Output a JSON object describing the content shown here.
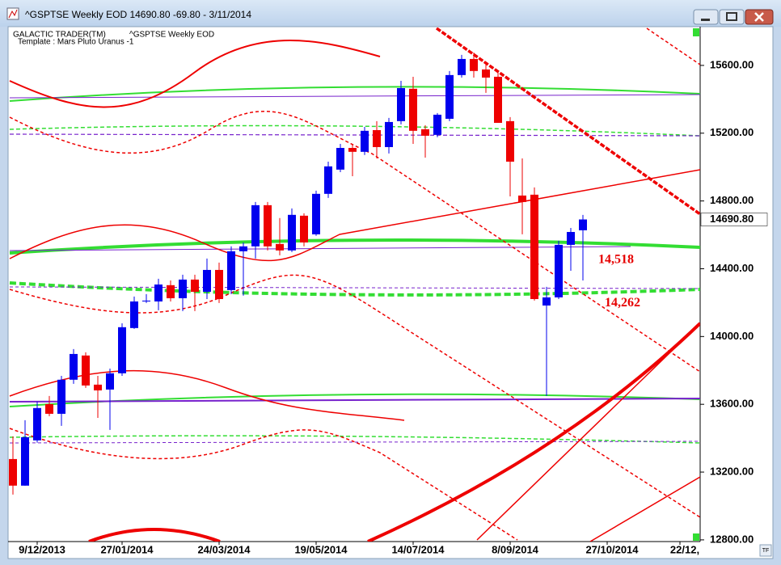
{
  "window": {
    "title": "^GSPTSE Weekly EOD  14690.80   -69.80 - 3/11/2014"
  },
  "chart_data": {
    "type": "candlestick",
    "header": "GALACTIC TRADER(TM)",
    "subheader": "^GSPTSE Weekly EOD",
    "template": "Template : Mars Pluto Uranus -1",
    "categories": [
      null,
      null,
      "9/12/2013",
      null,
      null,
      null,
      null,
      null,
      null,
      "27/01/2014",
      null,
      null,
      null,
      null,
      null,
      null,
      null,
      "24/03/2014",
      null,
      null,
      null,
      null,
      null,
      null,
      null,
      "19/05/2014",
      null,
      null,
      null,
      null,
      null,
      null,
      null,
      "14/07/2014",
      null,
      null,
      null,
      null,
      null,
      null,
      null,
      "8/09/2014",
      null,
      null,
      null,
      null,
      null,
      null,
      null,
      "27/10/2014",
      null,
      null,
      null,
      null,
      null,
      "22/12,",
      null
    ],
    "open": [
      13277,
      13120,
      13387,
      13601,
      13544,
      13745,
      13888,
      13716,
      13687,
      13783,
      14050,
      14207,
      14207,
      14303,
      14226,
      14336,
      14264,
      14393,
      14274,
      14503,
      14532,
      14775,
      14546,
      14508,
      14713,
      14603,
      14842,
      14985,
      15113,
      15090,
      15218,
      15118,
      15271,
      15462,
      15223,
      15190,
      15285,
      15543,
      15638,
      15576,
      15533,
      15271,
      14832,
      14837,
      14183,
      14231,
      14541,
      14627,
      null,
      null,
      null,
      null,
      null,
      null,
      null,
      null,
      null
    ],
    "high": [
      13411,
      13506,
      13616,
      13649,
      13768,
      13926,
      13907,
      13768,
      13811,
      14078,
      14236,
      14250,
      14341,
      14331,
      14365,
      14365,
      14460,
      14436,
      14532,
      14555,
      14794,
      14794,
      14699,
      14756,
      14727,
      14861,
      15032,
      15137,
      15137,
      15237,
      15271,
      15290,
      15509,
      15533,
      15247,
      15319,
      15567,
      15662,
      15676,
      15605,
      15557,
      15295,
      15051,
      14880,
      14293,
      14565,
      14641,
      14718,
      null,
      null,
      null,
      null,
      null,
      null,
      null,
      null,
      null
    ],
    "low": [
      13067,
      13120,
      13373,
      13530,
      13473,
      13721,
      13697,
      13520,
      13449,
      13768,
      14045,
      14198,
      14155,
      14207,
      14150,
      14150,
      14221,
      14198,
      14250,
      14241,
      14460,
      14508,
      14479,
      14498,
      14532,
      14594,
      14818,
      14970,
      14946,
      15071,
      15051,
      15080,
      15252,
      15137,
      15056,
      15176,
      15271,
      15528,
      15528,
      15438,
      15261,
      14827,
      14603,
      14212,
      13649,
      14221,
      14388,
      14331,
      null,
      null,
      null,
      null,
      null,
      null,
      null,
      null,
      null
    ],
    "close": [
      13120,
      13406,
      13578,
      13544,
      13745,
      13897,
      13711,
      13682,
      13783,
      14055,
      14207,
      14212,
      14307,
      14226,
      14336,
      14264,
      14393,
      14221,
      14503,
      14532,
      14775,
      14532,
      14508,
      14718,
      14555,
      14842,
      15004,
      15113,
      15090,
      15214,
      15118,
      15266,
      15466,
      15214,
      15185,
      15309,
      15543,
      15638,
      15567,
      15528,
      15261,
      15032,
      14794,
      14221,
      14231,
      14541,
      14617,
      14690.8,
      null,
      null,
      null,
      null,
      null,
      null,
      null,
      null,
      null
    ],
    "up_color": "#0000ee",
    "down_color": "#ee0000",
    "ylim": [
      12790,
      15819
    ],
    "yticks": [
      {
        "value": 12800,
        "label": "12800.00"
      },
      {
        "value": 13200,
        "label": "13200.00"
      },
      {
        "value": 13600,
        "label": "13600.00"
      },
      {
        "value": 14000,
        "label": "14000.00"
      },
      {
        "value": 14400,
        "label": "14400.00"
      },
      {
        "value": 14800,
        "label": "14800.00"
      },
      {
        "value": 15200,
        "label": "15200.00"
      },
      {
        "value": 15600,
        "label": "15600.00"
      }
    ],
    "last_price": {
      "value": 14690.8,
      "label": "14690.80"
    },
    "annotations": [
      {
        "value": 14518,
        "label": "14,518"
      },
      {
        "value": 14262,
        "label": "14,262"
      }
    ],
    "annotation_color": "#e60000"
  }
}
